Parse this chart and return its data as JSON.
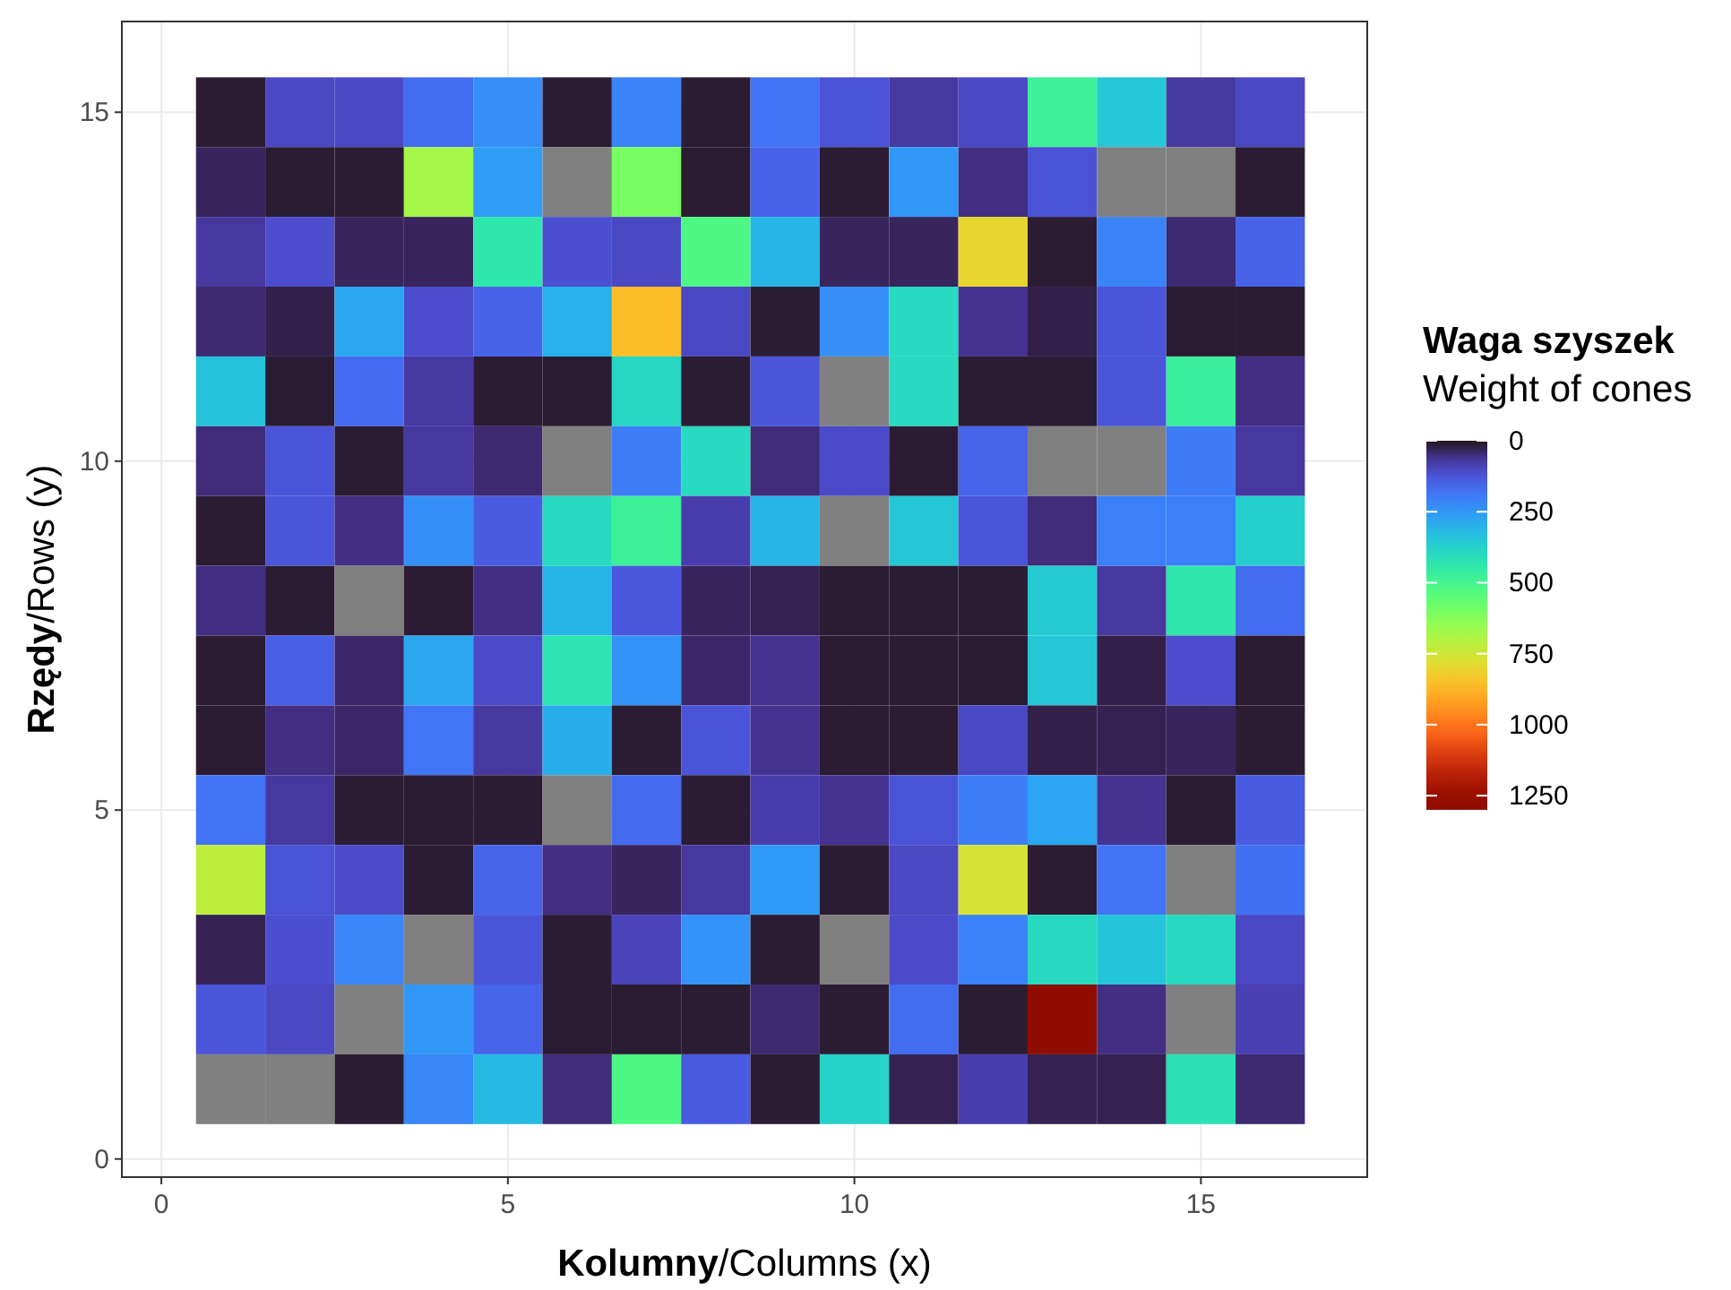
{
  "chart_data": {
    "type": "heatmap",
    "xlabel": "Kolumny/Columns (x)",
    "ylabel": "Rzędy/Rows (y)",
    "clabel": "Waga szyszek\nWeight of cones",
    "x": [
      1,
      2,
      3,
      4,
      5,
      6,
      7,
      8,
      9,
      10,
      11,
      12,
      13,
      14,
      15,
      16
    ],
    "y": [
      15,
      14,
      13,
      12,
      11,
      10,
      9,
      8,
      7,
      6,
      5,
      4,
      3,
      2,
      1
    ],
    "cells": [
      [
        10,
        100,
        100,
        170,
        230,
        10,
        210,
        10,
        180,
        120,
        70,
        100,
        480,
        350,
        70,
        100
      ],
      [
        30,
        10,
        10,
        680,
        260,
        null,
        600,
        10,
        150,
        10,
        250,
        50,
        120,
        null,
        null,
        10
      ],
      [
        70,
        110,
        30,
        30,
        440,
        115,
        100,
        520,
        310,
        30,
        30,
        800,
        10,
        210,
        40,
        150
      ],
      [
        40,
        20,
        280,
        110,
        150,
        300,
        860,
        100,
        10,
        230,
        400,
        60,
        20,
        125,
        10,
        10
      ],
      [
        340,
        10,
        165,
        70,
        10,
        10,
        390,
        10,
        125,
        null,
        400,
        10,
        10,
        125,
        470,
        50
      ],
      [
        45,
        125,
        10,
        70,
        40,
        null,
        200,
        400,
        45,
        105,
        10,
        155,
        null,
        null,
        195,
        70
      ],
      [
        10,
        125,
        50,
        235,
        135,
        400,
        480,
        80,
        310,
        null,
        350,
        125,
        45,
        205,
        205,
        370
      ],
      [
        50,
        10,
        null,
        10,
        50,
        310,
        130,
        30,
        25,
        10,
        10,
        10,
        360,
        70,
        440,
        170
      ],
      [
        10,
        145,
        35,
        280,
        105,
        430,
        240,
        35,
        60,
        10,
        10,
        10,
        350,
        20,
        110,
        10
      ],
      [
        10,
        50,
        35,
        185,
        70,
        295,
        10,
        125,
        60,
        10,
        10,
        100,
        20,
        25,
        30,
        10
      ],
      [
        180,
        70,
        10,
        10,
        10,
        null,
        165,
        10,
        80,
        60,
        120,
        200,
        275,
        60,
        10,
        135
      ],
      [
        720,
        120,
        105,
        10,
        155,
        50,
        30,
        70,
        255,
        10,
        100,
        760,
        10,
        180,
        null,
        175
      ],
      [
        25,
        115,
        215,
        null,
        125,
        10,
        90,
        240,
        10,
        null,
        105,
        210,
        400,
        345,
        400,
        100
      ],
      [
        125,
        100,
        null,
        250,
        155,
        10,
        10,
        10,
        40,
        10,
        170,
        10,
        1300,
        50,
        null,
        85
      ],
      [
        null,
        null,
        10,
        215,
        320,
        45,
        520,
        135,
        10,
        380,
        25,
        80,
        25,
        25,
        420,
        40
      ]
    ],
    "clim": [
      0,
      1300
    ],
    "cticks": [
      0,
      250,
      500,
      750,
      1000,
      1250
    ],
    "xlim": [
      -0.57,
      17.4
    ],
    "ylim": [
      -0.26,
      16.3
    ],
    "xticks": [
      0,
      5,
      10,
      15
    ],
    "yticks": [
      0,
      5,
      10,
      15
    ],
    "grid": true
  }
}
